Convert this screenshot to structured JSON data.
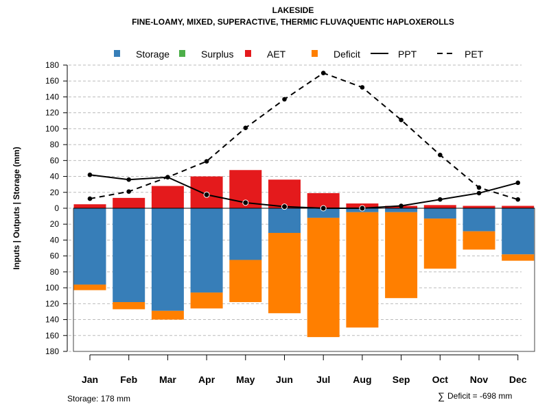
{
  "chart_data": {
    "type": "bar",
    "title": "LAKESIDE",
    "subtitle": "FINE-LOAMY, MIXED, SUPERACTIVE, THERMIC FLUVAQUENTIC HAPLOXEROLLS",
    "xlabel": "",
    "ylabel": "Inputs | Outputs | Storage    (mm)",
    "ylim": [
      -180,
      180
    ],
    "yticks": [
      180,
      160,
      140,
      120,
      100,
      80,
      60,
      40,
      20,
      0,
      20,
      40,
      60,
      80,
      100,
      120,
      140,
      160,
      180
    ],
    "categories": [
      "Jan",
      "Feb",
      "Mar",
      "Apr",
      "May",
      "Jun",
      "Jul",
      "Aug",
      "Sep",
      "Oct",
      "Nov",
      "Dec"
    ],
    "series": [
      {
        "name": "Storage",
        "type": "bar",
        "color": "#377EB8",
        "values": [
          96,
          118,
          129,
          106,
          65,
          31,
          12,
          5,
          5,
          13,
          29,
          58
        ]
      },
      {
        "name": "Surplus",
        "type": "bar",
        "color": "#4DAF4A",
        "values": [
          0,
          0,
          0,
          0,
          0,
          0,
          0,
          0,
          0,
          0,
          0,
          0
        ]
      },
      {
        "name": "AET",
        "type": "bar",
        "color": "#E41A1C",
        "values": [
          5,
          13,
          28,
          40,
          48,
          36,
          19,
          6,
          3,
          4,
          3,
          3
        ]
      },
      {
        "name": "Deficit",
        "type": "bar",
        "color": "#FF7F00",
        "values": [
          7,
          9,
          11,
          20,
          53,
          101,
          150,
          145,
          108,
          63,
          23,
          8
        ]
      },
      {
        "name": "PPT",
        "type": "line",
        "style": "solid",
        "values": [
          42,
          36,
          39,
          17,
          7,
          2,
          0,
          0,
          3,
          11,
          19,
          32
        ]
      },
      {
        "name": "PET",
        "type": "line",
        "style": "dashed",
        "values": [
          12,
          21,
          39,
          59,
          101,
          137,
          170,
          152,
          111,
          67,
          26,
          11
        ]
      }
    ],
    "legend_position": "top",
    "grid": true,
    "annotations": {
      "storage": "Storage: 178 mm",
      "deficit_symbol": "∑",
      "deficit": "Deficit = -698 mm"
    }
  }
}
